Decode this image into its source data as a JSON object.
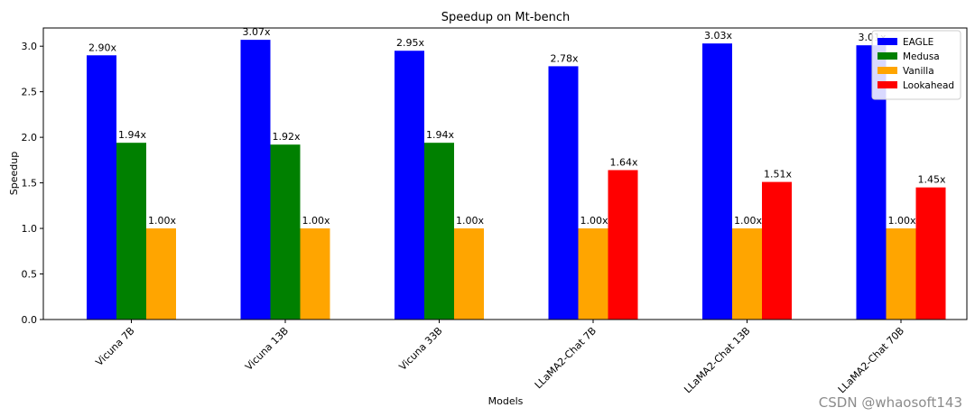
{
  "chart_data": {
    "type": "bar",
    "title": "Speedup on Mt-bench",
    "xlabel": "Models",
    "ylabel": "Speedup",
    "ylim": [
      0,
      3.2
    ],
    "yticks": [
      "0.0",
      "0.5",
      "1.0",
      "1.5",
      "2.0",
      "2.5",
      "3.0"
    ],
    "categories": [
      "Vicuna 7B",
      "Vicuna 13B",
      "Vicuna 33B",
      "LLaMA2-Chat 7B",
      "LLaMA2-Chat 13B",
      "LLaMA2-Chat 70B"
    ],
    "series": [
      {
        "name": "EAGLE",
        "color": "#0000ff",
        "values": [
          2.9,
          3.07,
          2.95,
          2.78,
          3.03,
          3.01
        ],
        "labels": [
          "2.90x",
          "3.07x",
          "2.95x",
          "2.78x",
          "3.03x",
          "3.01x"
        ]
      },
      {
        "name": "Medusa",
        "color": "#008000",
        "values": [
          1.94,
          1.92,
          1.94,
          null,
          null,
          null
        ],
        "labels": [
          "1.94x",
          "1.92x",
          "1.94x",
          "",
          "",
          ""
        ]
      },
      {
        "name": "Vanilla",
        "color": "#ffa500",
        "values": [
          1.0,
          1.0,
          1.0,
          1.0,
          1.0,
          1.0
        ],
        "labels": [
          "1.00x",
          "1.00x",
          "1.00x",
          "1.00x",
          "1.00x",
          "1.00x"
        ]
      },
      {
        "name": "Lookahead",
        "color": "#ff0000",
        "values": [
          null,
          null,
          null,
          1.64,
          1.51,
          1.45
        ],
        "labels": [
          "",
          "",
          "",
          "1.64x",
          "1.51x",
          "1.45x"
        ]
      }
    ],
    "legend_position": "top-right",
    "grid": false
  },
  "watermark": "CSDN @whaosoft143"
}
